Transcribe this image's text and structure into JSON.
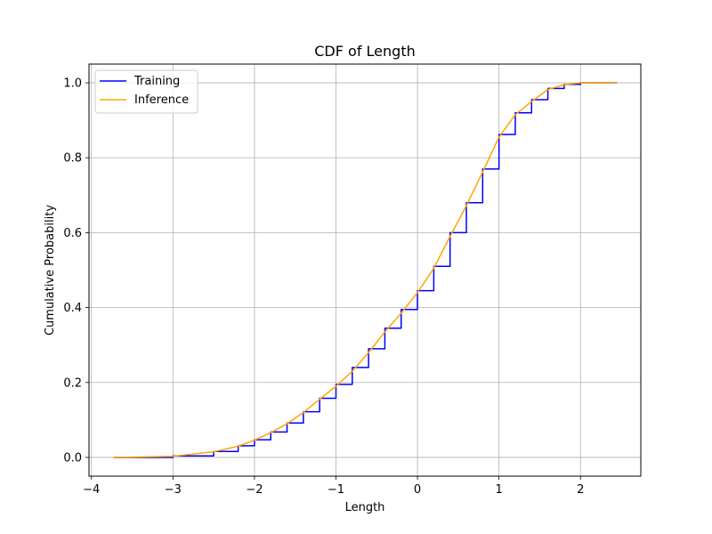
{
  "chart_data": {
    "type": "line",
    "title": "CDF of Length",
    "xlabel": "Length",
    "ylabel": "Cumulative Probability",
    "xlim": [
      -4.03,
      2.74
    ],
    "ylim": [
      -0.05,
      1.05
    ],
    "xticks": [
      -4,
      -3,
      -2,
      -1,
      0,
      1,
      2
    ],
    "yticks": [
      0.0,
      0.2,
      0.4,
      0.6,
      0.8,
      1.0
    ],
    "xtick_labels": [
      "−4",
      "−3",
      "−2",
      "−1",
      "0",
      "1",
      "2"
    ],
    "ytick_labels": [
      "0.0",
      "0.2",
      "0.4",
      "0.6",
      "0.8",
      "1.0"
    ],
    "grid": true,
    "legend_position": "top-left",
    "series": [
      {
        "name": "Training",
        "color": "#0000ff",
        "style": "step",
        "x": [
          -3.73,
          -3.0,
          -2.5,
          -2.2,
          -2.0,
          -1.8,
          -1.6,
          -1.4,
          -1.2,
          -1.0,
          -0.8,
          -0.6,
          -0.4,
          -0.2,
          0.0,
          0.2,
          0.4,
          0.6,
          0.8,
          1.0,
          1.2,
          1.4,
          1.6,
          1.8,
          2.0,
          2.2,
          2.45
        ],
        "y": [
          0.0,
          0.004,
          0.016,
          0.031,
          0.047,
          0.068,
          0.092,
          0.122,
          0.158,
          0.195,
          0.24,
          0.29,
          0.345,
          0.395,
          0.445,
          0.51,
          0.6,
          0.68,
          0.77,
          0.862,
          0.92,
          0.955,
          0.985,
          0.996,
          1.0,
          1.0,
          1.0
        ]
      },
      {
        "name": "Inference",
        "color": "#ffa500",
        "style": "line",
        "x": [
          -3.73,
          -3.0,
          -2.5,
          -2.2,
          -2.0,
          -1.8,
          -1.6,
          -1.4,
          -1.2,
          -1.0,
          -0.8,
          -0.6,
          -0.4,
          -0.2,
          0.0,
          0.2,
          0.4,
          0.6,
          0.8,
          1.0,
          1.2,
          1.4,
          1.6,
          1.8,
          2.0,
          2.2,
          2.45
        ],
        "y": [
          0.0,
          0.003,
          0.015,
          0.03,
          0.046,
          0.066,
          0.09,
          0.12,
          0.155,
          0.19,
          0.23,
          0.28,
          0.335,
          0.385,
          0.44,
          0.505,
          0.59,
          0.672,
          0.762,
          0.855,
          0.915,
          0.95,
          0.982,
          0.995,
          1.0,
          1.0,
          1.0
        ]
      }
    ]
  }
}
